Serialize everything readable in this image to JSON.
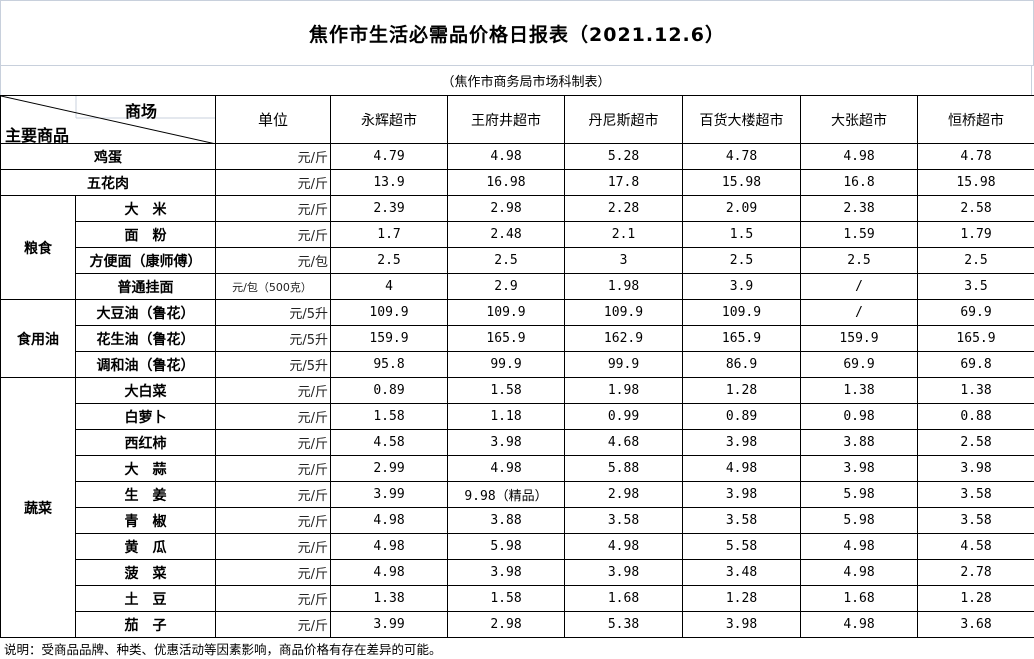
{
  "title": "焦作市生活必需品价格日报表（2021.12.6）",
  "subtitle": "（焦作市商务局市场科制表）",
  "header": {
    "mall_label": "商场",
    "goods_label": "主要商品",
    "unit_label": "单位",
    "stores": [
      "永辉超市",
      "王府井超市",
      "丹尼斯超市",
      "百货大楼超市",
      "大张超市",
      "恒桥超市"
    ]
  },
  "rows": [
    {
      "category": "",
      "name": "鸡蛋",
      "unit": "元/斤",
      "values": [
        "4.79",
        "4.98",
        "5.28",
        "4.78",
        "4.98",
        "4.78"
      ]
    },
    {
      "category": "",
      "name": "五花肉",
      "unit": "元/斤",
      "values": [
        "13.9",
        "16.98",
        "17.8",
        "15.98",
        "16.8",
        "15.98"
      ]
    },
    {
      "category": "粮食",
      "name": "大　米",
      "unit": "元/斤",
      "values": [
        "2.39",
        "2.98",
        "2.28",
        "2.09",
        "2.38",
        "2.58"
      ]
    },
    {
      "category": "粮食",
      "name": "面　粉",
      "unit": "元/斤",
      "values": [
        "1.7",
        "2.48",
        "2.1",
        "1.5",
        "1.59",
        "1.79"
      ]
    },
    {
      "category": "粮食",
      "name": "方便面（康师傅）",
      "unit": "元/包",
      "values": [
        "2.5",
        "2.5",
        "3",
        "2.5",
        "2.5",
        "2.5"
      ]
    },
    {
      "category": "粮食",
      "name": "普通挂面",
      "unit": "元/包（500克）",
      "values": [
        "4",
        "2.9",
        "1.98",
        "3.9",
        "/",
        "3.5"
      ]
    },
    {
      "category": "食用油",
      "name": "大豆油（鲁花）",
      "unit": "元/5升",
      "values": [
        "109.9",
        "109.9",
        "109.9",
        "109.9",
        "/",
        "69.9"
      ]
    },
    {
      "category": "食用油",
      "name": "花生油（鲁花）",
      "unit": "元/5升",
      "values": [
        "159.9",
        "165.9",
        "162.9",
        "165.9",
        "159.9",
        "165.9"
      ]
    },
    {
      "category": "食用油",
      "name": "调和油（鲁花）",
      "unit": "元/5升",
      "values": [
        "95.8",
        "99.9",
        "99.9",
        "86.9",
        "69.9",
        "69.8"
      ]
    },
    {
      "category": "蔬菜",
      "name": "大白菜",
      "unit": "元/斤",
      "values": [
        "0.89",
        "1.58",
        "1.98",
        "1.28",
        "1.38",
        "1.38"
      ]
    },
    {
      "category": "蔬菜",
      "name": "白萝卜",
      "unit": "元/斤",
      "values": [
        "1.58",
        "1.18",
        "0.99",
        "0.89",
        "0.98",
        "0.88"
      ]
    },
    {
      "category": "蔬菜",
      "name": "西红柿",
      "unit": "元/斤",
      "values": [
        "4.58",
        "3.98",
        "4.68",
        "3.98",
        "3.88",
        "2.58"
      ]
    },
    {
      "category": "蔬菜",
      "name": "大　蒜",
      "unit": "元/斤",
      "values": [
        "2.99",
        "4.98",
        "5.88",
        "4.98",
        "3.98",
        "3.98"
      ]
    },
    {
      "category": "蔬菜",
      "name": "生　姜",
      "unit": "元/斤",
      "values": [
        "3.99",
        "9.98（精品）",
        "2.98",
        "3.98",
        "5.98",
        "3.58"
      ]
    },
    {
      "category": "蔬菜",
      "name": "青　椒",
      "unit": "元/斤",
      "values": [
        "4.98",
        "3.88",
        "3.58",
        "3.58",
        "5.98",
        "3.58"
      ]
    },
    {
      "category": "蔬菜",
      "name": "黄　瓜",
      "unit": "元/斤",
      "values": [
        "4.98",
        "5.98",
        "4.98",
        "5.58",
        "4.98",
        "4.58"
      ]
    },
    {
      "category": "蔬菜",
      "name": "菠　菜",
      "unit": "元/斤",
      "values": [
        "4.98",
        "3.98",
        "3.98",
        "3.48",
        "4.98",
        "2.78"
      ]
    },
    {
      "category": "蔬菜",
      "name": "土　豆",
      "unit": "元/斤",
      "values": [
        "1.38",
        "1.58",
        "1.68",
        "1.28",
        "1.68",
        "1.28"
      ]
    },
    {
      "category": "蔬菜",
      "name": "茄　子",
      "unit": "元/斤",
      "values": [
        "3.99",
        "2.98",
        "5.38",
        "3.98",
        "4.98",
        "3.68"
      ]
    }
  ],
  "footer": "说明：受商品品牌、种类、优惠活动等因素影响，商品价格有存在差异的可能。"
}
